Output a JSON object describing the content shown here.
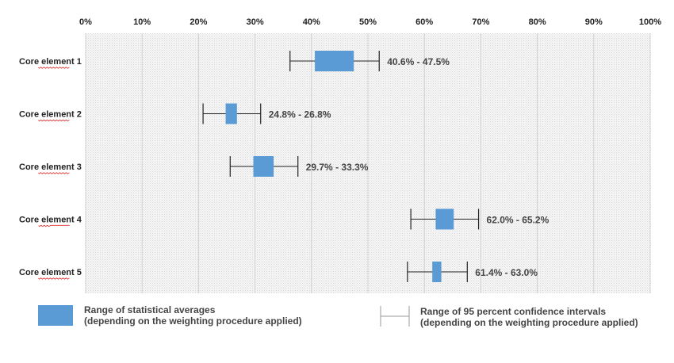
{
  "chart_data": {
    "type": "range",
    "x_ticks": [
      "0%",
      "10%",
      "20%",
      "30%",
      "40%",
      "50%",
      "60%",
      "70%",
      "80%",
      "90%",
      "100%"
    ],
    "xlim": [
      0,
      100
    ],
    "grid": true,
    "categories": [
      {
        "name": "Core element 1",
        "avg_low": 40.6,
        "avg_high": 47.5,
        "ci_low": 36.2,
        "ci_high": 52.0,
        "label": "40.6% - 47.5%"
      },
      {
        "name": "Core element 2",
        "avg_low": 24.8,
        "avg_high": 26.8,
        "ci_low": 20.8,
        "ci_high": 31.0,
        "label": "24.8% - 26.8%"
      },
      {
        "name": "Core element 3",
        "avg_low": 29.7,
        "avg_high": 33.3,
        "ci_low": 25.6,
        "ci_high": 37.6,
        "label": "29.7% - 33.3%"
      },
      {
        "name": "Core element 4",
        "avg_low": 62.0,
        "avg_high": 65.2,
        "ci_low": 57.6,
        "ci_high": 69.6,
        "label": "62.0% - 65.2%"
      },
      {
        "name": "Core element 5",
        "avg_low": 61.4,
        "avg_high": 63.0,
        "ci_low": 57.0,
        "ci_high": 67.6,
        "label": "61.4% - 63.0%"
      }
    ],
    "colors": {
      "box": "#5b9bd5",
      "whisker": "#222222",
      "grid": "#cfcfcf"
    }
  },
  "legend": {
    "avg_line1": "Range of statistical averages",
    "avg_line2": "(depending on the weighting procedure applied)",
    "ci_line1": "Range of 95 percent confidence intervals",
    "ci_line2": "(depending on the weighting procedure applied)"
  }
}
